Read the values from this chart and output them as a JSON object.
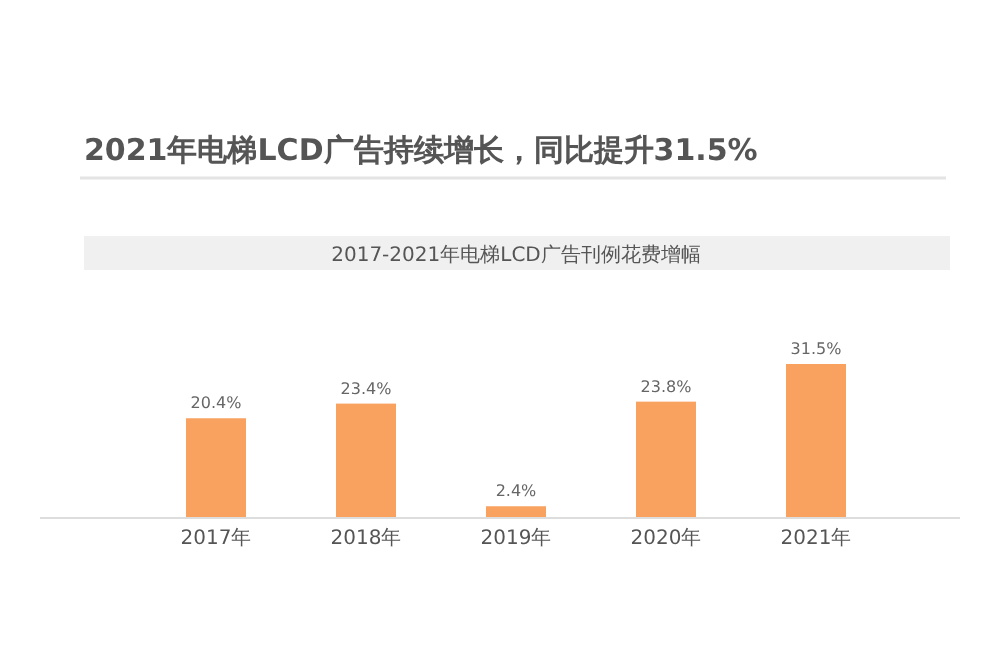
{
  "chart_data": {
    "type": "bar",
    "title": "2021年电梯LCD广告持续增长，同比提升31.5%",
    "subtitle": "2017-2021年电梯LCD广告刊例花费增幅",
    "categories": [
      "2017年",
      "2018年",
      "2019年",
      "2020年",
      "2021年"
    ],
    "values": [
      20.4,
      23.4,
      2.4,
      23.8,
      31.5
    ],
    "value_labels": [
      "20.4%",
      "23.4%",
      "2.4%",
      "23.8%",
      "31.5%"
    ],
    "color": "#f9a15f",
    "relative": false
  }
}
